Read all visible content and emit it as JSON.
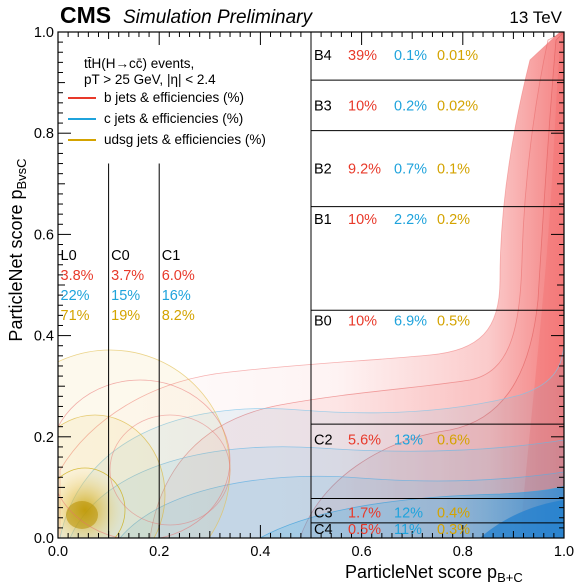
{
  "header": {
    "cms": "CMS",
    "subtitle": "Simulation Preliminary",
    "energy": "13 TeV"
  },
  "colors": {
    "b": "#e8392a",
    "c": "#1fa3dc",
    "udsg": "#d4a300",
    "b_fill": "#f36a6a",
    "c_fill": "#4fb2e6",
    "udsg_fill": "#e8c650"
  },
  "legend": {
    "line1": "tt̄H(H→cc̄) events,",
    "line2": "pT > 25 GeV, |η| < 2.4",
    "items": [
      {
        "key": "b",
        "label": "b jets & efficiencies (%)"
      },
      {
        "key": "c",
        "label": "c jets & efficiencies (%)"
      },
      {
        "key": "udsg",
        "label": "udsg jets & efficiencies (%)"
      }
    ]
  },
  "chart_data": {
    "type": "heatmap",
    "xlabel": "ParticleNet score p",
    "xlabel_sub": "B+C",
    "ylabel": "ParticleNet score p",
    "ylabel_sub": "BvsC",
    "xlim": [
      0.0,
      1.0
    ],
    "ylim": [
      0.0,
      1.0
    ],
    "xticks": [
      "0.0",
      "0.2",
      "0.4",
      "0.6",
      "0.8",
      "1.0"
    ],
    "yticks": [
      "0.0",
      "0.2",
      "0.4",
      "0.6",
      "0.8",
      "1.0"
    ],
    "cuts": {
      "x_lines": [
        0.1,
        0.2,
        0.5
      ],
      "right_region_y_bounds": [
        0.0,
        0.03,
        0.078,
        0.225,
        0.45,
        0.655,
        0.805,
        0.905,
        1.0
      ]
    },
    "bins": [
      {
        "name": "L0",
        "b": "3.8%",
        "c": "22%",
        "udsg": "71%"
      },
      {
        "name": "C0",
        "b": "3.7%",
        "c": "15%",
        "udsg": "19%"
      },
      {
        "name": "C1",
        "b": "6.0%",
        "c": "16%",
        "udsg": "8.2%"
      },
      {
        "name": "B4",
        "b": "39%",
        "c": "0.1%",
        "udsg": "0.01%"
      },
      {
        "name": "B3",
        "b": "10%",
        "c": "0.2%",
        "udsg": "0.02%"
      },
      {
        "name": "B2",
        "b": "9.2%",
        "c": "0.7%",
        "udsg": "0.1%"
      },
      {
        "name": "B1",
        "b": "10%",
        "c": "2.2%",
        "udsg": "0.2%"
      },
      {
        "name": "B0",
        "b": "10%",
        "c": "6.9%",
        "udsg": "0.5%"
      },
      {
        "name": "C2",
        "b": "5.6%",
        "c": "13%",
        "udsg": "0.6%"
      },
      {
        "name": "C3",
        "b": "1.7%",
        "c": "12%",
        "udsg": "0.4%"
      },
      {
        "name": "C4",
        "b": "0.5%",
        "c": "11%",
        "udsg": "0.3%"
      }
    ]
  }
}
